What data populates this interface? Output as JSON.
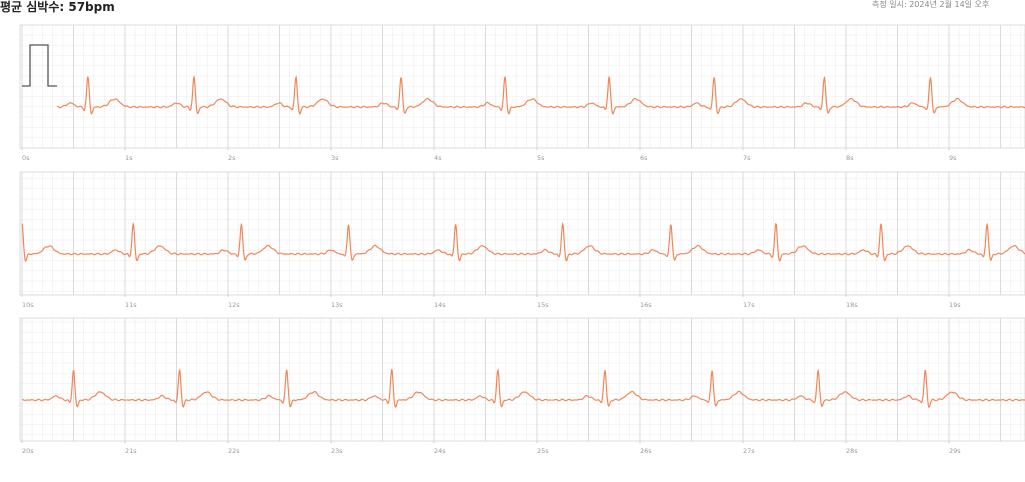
{
  "header": {
    "heart_rate": "평균 심박수: 57bpm",
    "measured_at": "측정 일시: 2024년 2월 14일 오후"
  },
  "chart_data": {
    "type": "ecg",
    "color": "#f0875a",
    "beats": [
      0.64,
      1.67,
      2.66,
      3.68,
      4.69,
      5.7,
      6.72,
      7.79,
      8.82,
      10.0,
      11.08,
      12.13,
      13.17,
      14.21,
      15.25,
      16.3,
      17.32,
      18.34,
      19.37,
      20.5,
      21.53,
      22.57,
      23.59,
      24.62,
      25.66,
      26.7,
      27.73,
      28.77
    ],
    "strips": [
      {
        "xlim": [
          0,
          10
        ],
        "xticks": [
          {
            "value": 0,
            "label": "0s"
          },
          {
            "value": 1,
            "label": "1s"
          },
          {
            "value": 2,
            "label": "2s"
          },
          {
            "value": 3,
            "label": "3s"
          },
          {
            "value": 4,
            "label": "4s"
          },
          {
            "value": 5,
            "label": "5s"
          },
          {
            "value": 6,
            "label": "6s"
          },
          {
            "value": 7,
            "label": "7s"
          },
          {
            "value": 8,
            "label": "8s"
          },
          {
            "value": 9,
            "label": "9s"
          }
        ]
      },
      {
        "xlim": [
          10,
          20
        ],
        "xticks": [
          {
            "value": 10,
            "label": "10s"
          },
          {
            "value": 11,
            "label": "11s"
          },
          {
            "value": 12,
            "label": "12s"
          },
          {
            "value": 13,
            "label": "13s"
          },
          {
            "value": 14,
            "label": "14s"
          },
          {
            "value": 15,
            "label": "15s"
          },
          {
            "value": 16,
            "label": "16s"
          },
          {
            "value": 17,
            "label": "17s"
          },
          {
            "value": 18,
            "label": "18s"
          },
          {
            "value": 19,
            "label": "19s"
          }
        ]
      },
      {
        "xlim": [
          20,
          30
        ],
        "xticks": [
          {
            "value": 20,
            "label": "20s"
          },
          {
            "value": 21,
            "label": "21s"
          },
          {
            "value": 22,
            "label": "22s"
          },
          {
            "value": 23,
            "label": "23s"
          },
          {
            "value": 24,
            "label": "24s"
          },
          {
            "value": 25,
            "label": "25s"
          },
          {
            "value": 26,
            "label": "26s"
          },
          {
            "value": 27,
            "label": "27s"
          },
          {
            "value": 28,
            "label": "28s"
          },
          {
            "value": 29,
            "label": "29s"
          }
        ]
      }
    ]
  }
}
